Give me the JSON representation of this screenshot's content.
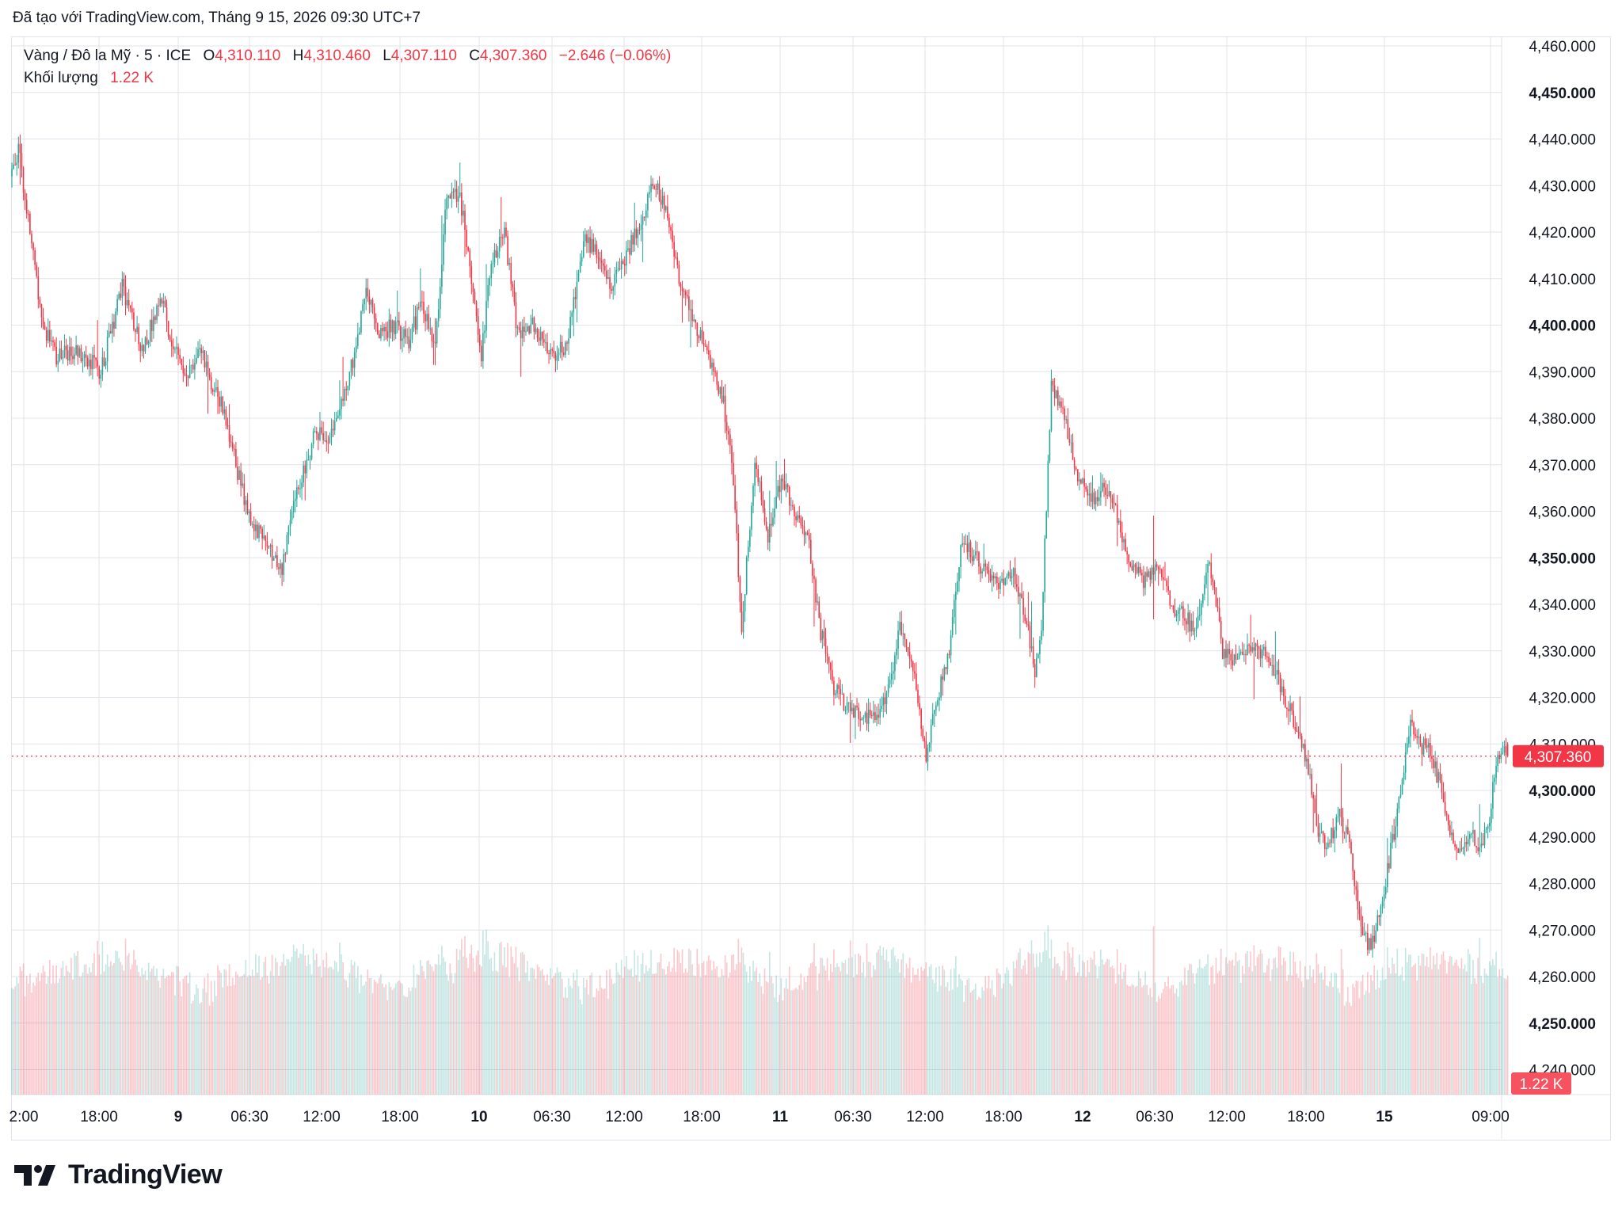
{
  "header": {
    "caption": "Đã tạo với TradingView.com, Tháng 9 15, 2026 09:30 UTC+7"
  },
  "legend": {
    "symbol": "Vàng / Đô la Mỹ · 5 · ICE",
    "open_label": "O",
    "open": "4,310.110",
    "high_label": "H",
    "high": "4,310.460",
    "low_label": "L",
    "low": "4,307.110",
    "close_label": "C",
    "close": "4,307.360",
    "change": "−2.646 (−0.06%)",
    "volume_label": "Khối lượng",
    "volume": "1.22 K"
  },
  "colors": {
    "up": "#26a69a",
    "down": "#f23645",
    "grid": "#e0e3eb",
    "text": "#131722",
    "price_tag_bg": "#f23645",
    "volume_tag_bg": "#f7525f"
  },
  "logo": {
    "icon": "tradingview-logo-icon",
    "text": "TradingView"
  },
  "chart_data": {
    "type": "candlestick",
    "title": "",
    "xlabel": "",
    "ylabel": "",
    "ylim": [
      4236,
      4462
    ],
    "grid": true,
    "y_ticks": [
      "4,460.000",
      "4,450.000",
      "4,440.000",
      "4,430.000",
      "4,420.000",
      "4,410.000",
      "4,400.000",
      "4,390.000",
      "4,380.000",
      "4,370.000",
      "4,360.000",
      "4,350.000",
      "4,340.000",
      "4,330.000",
      "4,320.000",
      "4,310.000",
      "4,300.000",
      "4,290.000",
      "4,280.000",
      "4,270.000",
      "4,260.000",
      "4,250.000",
      "4,240.000"
    ],
    "y_ticks_bold": [
      "4,450.000",
      "4,400.000",
      "4,350.000",
      "4,300.000",
      "4,250.000"
    ],
    "x_ticks": [
      "2:00",
      "18:00",
      "9",
      "06:30",
      "12:00",
      "18:00",
      "10",
      "06:30",
      "12:00",
      "18:00",
      "11",
      "06:30",
      "12:00",
      "18:00",
      "12",
      "06:30",
      "12:00",
      "18:00",
      "15",
      "09:00"
    ],
    "x_ticks_bold": [
      "9",
      "10",
      "11",
      "12",
      "15"
    ],
    "last_price_label": "4,307.360",
    "last_price": 4307.36,
    "last_volume_label": "1.22 K",
    "price_path": [
      [
        0,
        4432
      ],
      [
        5,
        4438
      ],
      [
        12,
        4420
      ],
      [
        20,
        4400
      ],
      [
        28,
        4393
      ],
      [
        40,
        4395
      ],
      [
        55,
        4390
      ],
      [
        68,
        4408
      ],
      [
        80,
        4395
      ],
      [
        92,
        4405
      ],
      [
        100,
        4394
      ],
      [
        108,
        4390
      ],
      [
        116,
        4395
      ],
      [
        122,
        4388
      ],
      [
        130,
        4382
      ],
      [
        137,
        4370
      ],
      [
        144,
        4360
      ],
      [
        156,
        4352
      ],
      [
        165,
        4348
      ],
      [
        172,
        4362
      ],
      [
        180,
        4370
      ],
      [
        186,
        4378
      ],
      [
        193,
        4373
      ],
      [
        200,
        4383
      ],
      [
        208,
        4392
      ],
      [
        216,
        4408
      ],
      [
        224,
        4398
      ],
      [
        232,
        4400
      ],
      [
        242,
        4397
      ],
      [
        250,
        4405
      ],
      [
        258,
        4396
      ],
      [
        265,
        4428
      ],
      [
        273,
        4428
      ],
      [
        280,
        4410
      ],
      [
        286,
        4393
      ],
      [
        292,
        4414
      ],
      [
        300,
        4420
      ],
      [
        308,
        4398
      ],
      [
        318,
        4400
      ],
      [
        328,
        4394
      ],
      [
        338,
        4395
      ],
      [
        348,
        4419
      ],
      [
        356,
        4416
      ],
      [
        364,
        4408
      ],
      [
        372,
        4414
      ],
      [
        380,
        4420
      ],
      [
        390,
        4430
      ],
      [
        398,
        4426
      ],
      [
        406,
        4410
      ],
      [
        414,
        4402
      ],
      [
        420,
        4396
      ],
      [
        426,
        4390
      ],
      [
        432,
        4385
      ],
      [
        438,
        4372
      ],
      [
        444,
        4335
      ],
      [
        452,
        4371
      ],
      [
        460,
        4355
      ],
      [
        468,
        4367
      ],
      [
        476,
        4360
      ],
      [
        484,
        4355
      ],
      [
        492,
        4334
      ],
      [
        500,
        4322
      ],
      [
        508,
        4318
      ],
      [
        516,
        4316
      ],
      [
        524,
        4316
      ],
      [
        532,
        4320
      ],
      [
        540,
        4335
      ],
      [
        548,
        4326
      ],
      [
        556,
        4308
      ],
      [
        562,
        4318
      ],
      [
        570,
        4330
      ],
      [
        578,
        4355
      ],
      [
        586,
        4350
      ],
      [
        594,
        4345
      ],
      [
        602,
        4345
      ],
      [
        610,
        4346
      ],
      [
        616,
        4338
      ],
      [
        622,
        4325
      ],
      [
        626,
        4335
      ],
      [
        632,
        4388
      ],
      [
        640,
        4380
      ],
      [
        648,
        4368
      ],
      [
        656,
        4362
      ],
      [
        664,
        4366
      ],
      [
        672,
        4359
      ],
      [
        680,
        4348
      ],
      [
        688,
        4345
      ],
      [
        696,
        4349
      ],
      [
        704,
        4340
      ],
      [
        712,
        4338
      ],
      [
        720,
        4334
      ],
      [
        728,
        4350
      ],
      [
        736,
        4330
      ],
      [
        744,
        4328
      ],
      [
        752,
        4330
      ],
      [
        760,
        4330
      ],
      [
        768,
        4325
      ],
      [
        776,
        4318
      ],
      [
        782,
        4312
      ],
      [
        788,
        4305
      ],
      [
        794,
        4290
      ],
      [
        800,
        4288
      ],
      [
        806,
        4295
      ],
      [
        812,
        4290
      ],
      [
        816,
        4280
      ],
      [
        820,
        4270
      ],
      [
        826,
        4266
      ],
      [
        832,
        4275
      ],
      [
        838,
        4287
      ],
      [
        844,
        4300
      ],
      [
        850,
        4314
      ],
      [
        856,
        4310
      ],
      [
        862,
        4308
      ],
      [
        868,
        4301
      ],
      [
        874,
        4292
      ],
      [
        880,
        4286
      ],
      [
        886,
        4292
      ],
      [
        892,
        4286
      ],
      [
        898,
        4294
      ],
      [
        902,
        4306
      ],
      [
        908,
        4309
      ]
    ]
  }
}
